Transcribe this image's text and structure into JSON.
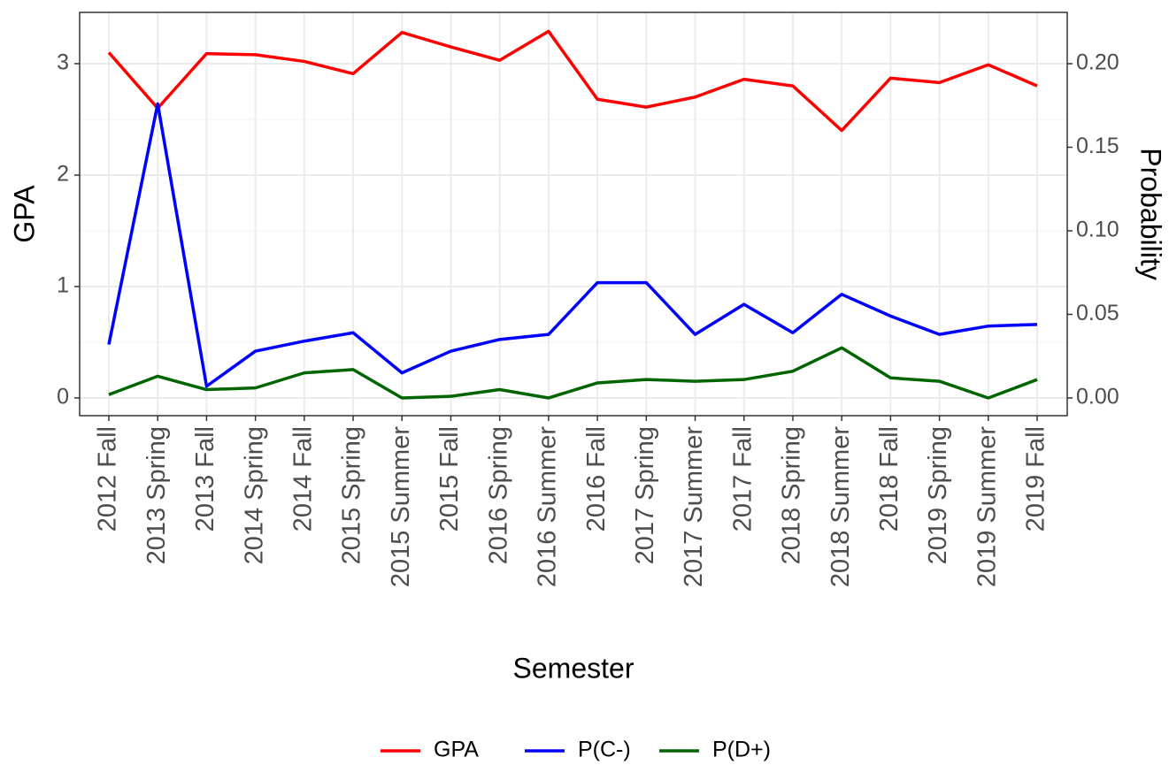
{
  "chart_data": {
    "type": "line",
    "categories": [
      "2012 Fall",
      "2013 Spring",
      "2013 Fall",
      "2014 Spring",
      "2014 Fall",
      "2015 Spring",
      "2015 Summer",
      "2015 Fall",
      "2016 Spring",
      "2016 Summer",
      "2016 Fall",
      "2017 Spring",
      "2017 Summer",
      "2017 Fall",
      "2018 Spring",
      "2018 Summer",
      "2018 Fall",
      "2019 Spring",
      "2019 Summer",
      "2019 Fall"
    ],
    "series": [
      {
        "name": "GPA",
        "color": "#ff0000",
        "values": [
          3.1,
          2.6,
          3.09,
          3.08,
          3.02,
          2.91,
          3.28,
          3.15,
          3.03,
          3.29,
          2.68,
          2.61,
          2.7,
          2.86,
          2.8,
          2.4,
          2.87,
          2.83,
          2.99,
          2.8
        ]
      },
      {
        "name": "P(C-)",
        "color": "#0000ff",
        "axis": "y2",
        "values": [
          0.032,
          0.176,
          0.007,
          0.028,
          0.034,
          0.039,
          0.015,
          0.028,
          0.035,
          0.038,
          0.069,
          0.069,
          0.038,
          0.056,
          0.039,
          0.062,
          0.049,
          0.038,
          0.043,
          0.044
        ]
      },
      {
        "name": "P(D+)",
        "color": "#006400",
        "axis": "y2",
        "values": [
          0.002,
          0.013,
          0.005,
          0.006,
          0.015,
          0.017,
          0.0,
          0.001,
          0.005,
          0.0,
          0.009,
          0.011,
          0.01,
          0.011,
          0.016,
          0.03,
          0.012,
          0.01,
          0.0,
          0.011
        ]
      }
    ],
    "x_label": "Semester",
    "y_label": "GPA",
    "y2_label": "Probability",
    "ylim": [
      -0.159,
      3.46
    ],
    "yticks": [
      0,
      1,
      2,
      3
    ],
    "y2lim": [
      -0.0106,
      0.2307
    ],
    "y2ticks": [
      {
        "value": 0,
        "label": "0.00"
      },
      {
        "value": 0.05,
        "label": "0.05"
      },
      {
        "value": 0.1,
        "label": "0.10"
      },
      {
        "value": 0.15,
        "label": "0.15"
      },
      {
        "value": 0.2,
        "label": "0.20"
      }
    ],
    "grid": true,
    "legend": "bottom"
  }
}
